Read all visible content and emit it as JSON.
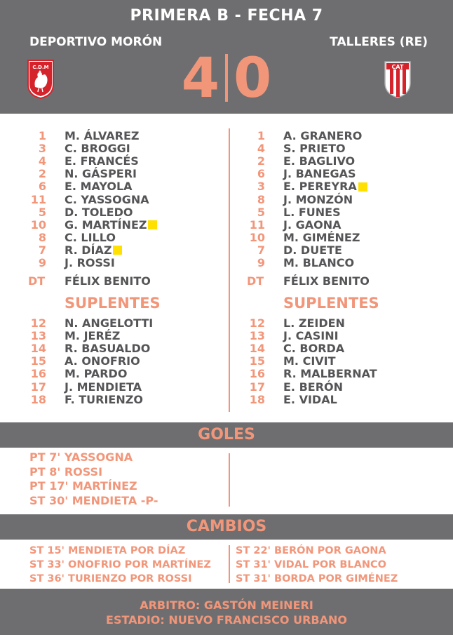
{
  "header": {
    "title": "PRIMERA B - FECHA 7",
    "home_name": "DEPORTIVO MORÓN",
    "away_name": "TALLERES (RE)",
    "home_score": "4",
    "away_score": "0",
    "home_crest_text": "C.D.M",
    "away_crest_text": "CAT"
  },
  "home": {
    "starters": [
      {
        "num": "1",
        "name": "M. ÁLVAREZ",
        "card": false
      },
      {
        "num": "3",
        "name": "C. BROGGI",
        "card": false
      },
      {
        "num": "4",
        "name": "E. FRANCÉS",
        "card": false
      },
      {
        "num": "2",
        "name": "N. GÁSPERI",
        "card": false
      },
      {
        "num": "6",
        "name": "E. MAYOLA",
        "card": false
      },
      {
        "num": "11",
        "name": "C. YASSOGNA",
        "card": false
      },
      {
        "num": "5",
        "name": "D. TOLEDO",
        "card": false
      },
      {
        "num": "10",
        "name": "G. MARTÍNEZ",
        "card": true
      },
      {
        "num": "8",
        "name": "C. LILLO",
        "card": false
      },
      {
        "num": "7",
        "name": "R. DÍAZ",
        "card": true
      },
      {
        "num": "9",
        "name": "J. ROSSI",
        "card": false
      }
    ],
    "dt_label": "DT",
    "dt_name": "FÉLIX BENITO",
    "subs_title": "SUPLENTES",
    "subs": [
      {
        "num": "12",
        "name": "N. ANGELOTTI"
      },
      {
        "num": "13",
        "name": "M. JERÉZ"
      },
      {
        "num": "14",
        "name": "R. BASUALDO"
      },
      {
        "num": "15",
        "name": "A. ONOFRIO"
      },
      {
        "num": "16",
        "name": "M. PARDO"
      },
      {
        "num": "17",
        "name": "J. MENDIETA"
      },
      {
        "num": "18",
        "name": "F. TURIENZO"
      }
    ]
  },
  "away": {
    "starters": [
      {
        "num": "1",
        "name": "A. GRANERO",
        "card": false
      },
      {
        "num": "4",
        "name": "S. PRIETO",
        "card": false
      },
      {
        "num": "2",
        "name": "E. BAGLIVO",
        "card": false
      },
      {
        "num": "6",
        "name": "J. BANEGAS",
        "card": false
      },
      {
        "num": "3",
        "name": "E. PEREYRA",
        "card": true
      },
      {
        "num": "8",
        "name": "J. MONZÓN",
        "card": false
      },
      {
        "num": "5",
        "name": "L. FUNES",
        "card": false
      },
      {
        "num": "11",
        "name": "J. GAONA",
        "card": false
      },
      {
        "num": "10",
        "name": "M. GIMÉNEZ",
        "card": false
      },
      {
        "num": "7",
        "name": "D. DUETE",
        "card": false
      },
      {
        "num": "9",
        "name": "M. BLANCO",
        "card": false
      }
    ],
    "dt_label": "DT",
    "dt_name": "FÉLIX BENITO",
    "subs_title": "SUPLENTES",
    "subs": [
      {
        "num": "12",
        "name": "L. ZEIDEN"
      },
      {
        "num": "13",
        "name": "J. CASINI"
      },
      {
        "num": "14",
        "name": "C. BORDA"
      },
      {
        "num": "15",
        "name": "M. CIVIT"
      },
      {
        "num": "16",
        "name": "R. MALBERNAT"
      },
      {
        "num": "17",
        "name": "E. BERÓN"
      },
      {
        "num": "18",
        "name": "E. VIDAL"
      }
    ]
  },
  "goals": {
    "title": "GOLES",
    "items": [
      "PT   7' YASSOGNA",
      "PT   8' ROSSI",
      "PT 17' MARTÍNEZ",
      "ST 30' MENDIETA -P-"
    ]
  },
  "changes": {
    "title": "CAMBIOS",
    "home": [
      "ST 15' MENDIETA POR DÍAZ",
      "ST 33' ONOFRIO POR MARTÍNEZ",
      "ST 36' TURIENZO POR ROSSI"
    ],
    "away": [
      "ST 22' BERÓN POR GAONA",
      "ST 31' VIDAL POR BLANCO",
      "ST 31' BORDA POR GIMÉNEZ"
    ]
  },
  "footer": {
    "referee": "ARBITRO: GASTÓN MEINERI",
    "stadium": "ESTADIO: NUEVO FRANCISCO URBANO"
  },
  "colors": {
    "band": "#6e6e70",
    "accent": "#f2967a",
    "name_text": "#555558",
    "card_yellow": "#ffe000"
  }
}
